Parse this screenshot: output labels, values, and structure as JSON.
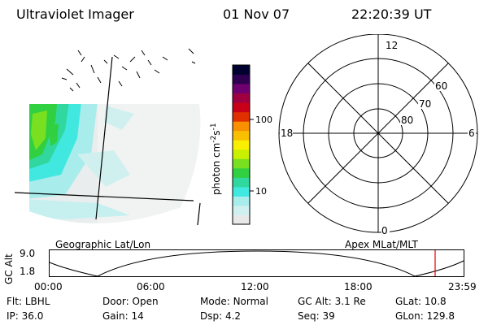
{
  "header": {
    "instrument": "Ultraviolet Imager",
    "date": "01 Nov 07",
    "time": "22:20:39 UT"
  },
  "colorbar": {
    "unit_main": "photon cm",
    "unit_exp1": "-2",
    "unit_mid": "s",
    "unit_exp2": "-1",
    "ticks": [
      {
        "label": "100",
        "value": 100
      },
      {
        "label": "10",
        "value": 10
      }
    ],
    "colors": [
      "#e8e8e8",
      "#d0f0f0",
      "#a8ecec",
      "#40e8e0",
      "#30d8a0",
      "#30d040",
      "#78e020",
      "#c8f000",
      "#f8f000",
      "#f8c000",
      "#f89000",
      "#e03000",
      "#c80018",
      "#a00040",
      "#700070",
      "#300050",
      "#000030"
    ]
  },
  "polar_plot": {
    "mlt_labels": {
      "top": "12",
      "bottom": "0",
      "left": "18",
      "right": "6"
    },
    "lat_labels": [
      "60",
      "70",
      "80"
    ]
  },
  "projection_labels": {
    "left": "Geographic Lat/Lon",
    "right": "Apex MLat/MLT"
  },
  "altitude_chart": {
    "ylabel": "GC Alt",
    "yticks": [
      "9.0",
      "1.8"
    ],
    "xticks": [
      "00:00",
      "06:00",
      "12:00",
      "18:00",
      "23:59"
    ],
    "current_time_marker": "22:20",
    "marker_color": "#e00000"
  },
  "status": {
    "row1": [
      {
        "label": "Flt:",
        "value": "LBHL"
      },
      {
        "label": "Door:",
        "value": "Open"
      },
      {
        "label": "Mode:",
        "value": "Normal"
      },
      {
        "label": "GC Alt:",
        "value": "3.1 Re"
      },
      {
        "label": "GLat:",
        "value": "10.8"
      }
    ],
    "row2": [
      {
        "label": "IP:",
        "value": "36.0"
      },
      {
        "label": "Gain:",
        "value": "14"
      },
      {
        "label": "Dsp:",
        "value": "4.2"
      },
      {
        "label": "Seq:",
        "value": "39"
      },
      {
        "label": "GLon:",
        "value": "129.8"
      }
    ]
  }
}
